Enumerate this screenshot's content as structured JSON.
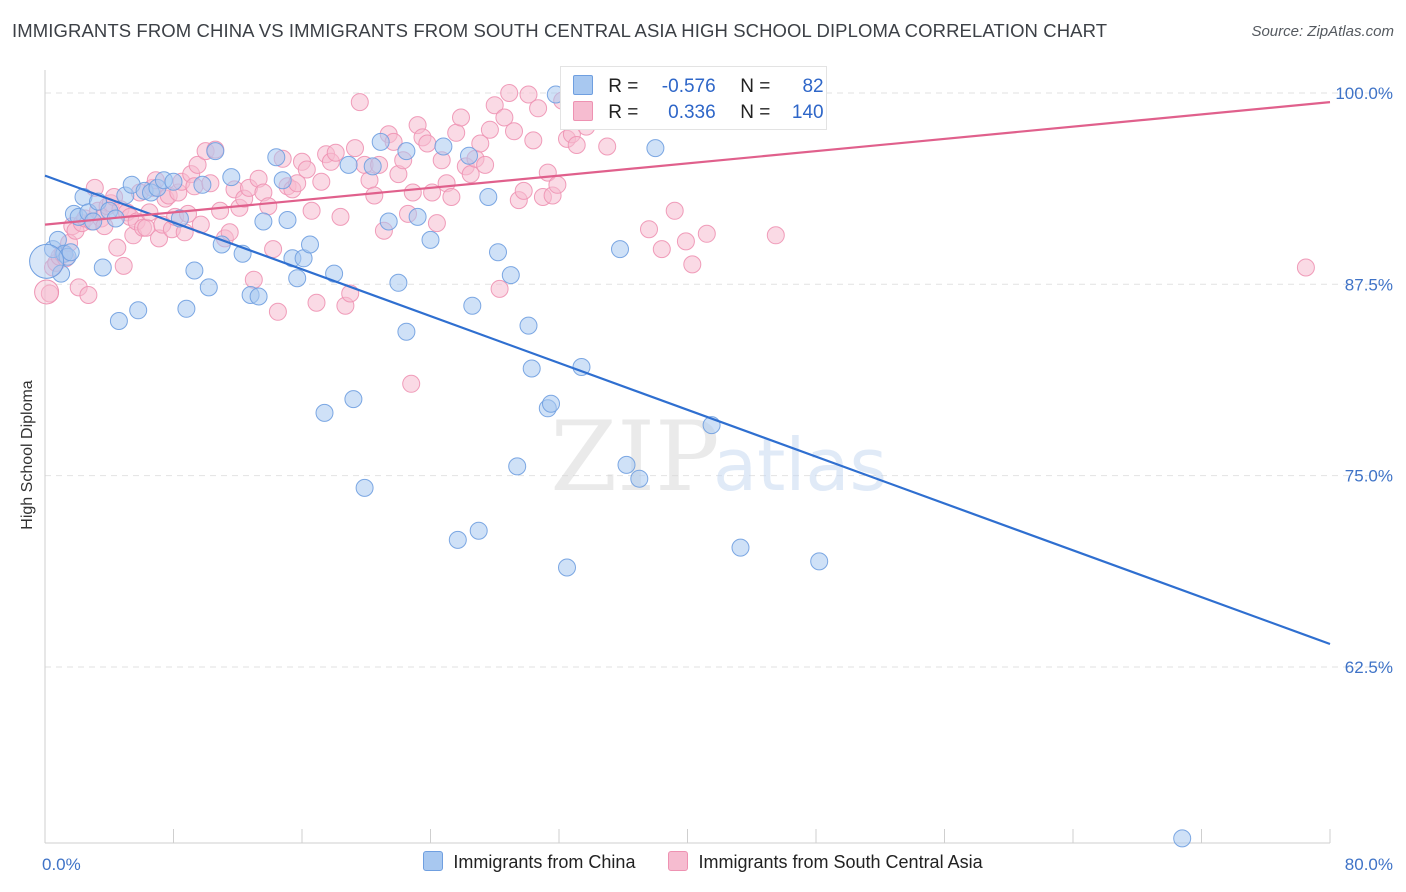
{
  "header": {
    "title": "IMMIGRANTS FROM CHINA VS IMMIGRANTS FROM SOUTH CENTRAL ASIA HIGH SCHOOL DIPLOMA CORRELATION CHART",
    "source": "Source: ZipAtlas.com"
  },
  "watermark": {
    "zip": "ZIP",
    "atlas": "atlas"
  },
  "colors": {
    "china_fill": "#a8c8f0",
    "china_stroke": "#6f9fe0",
    "china_line": "#2f6fd0",
    "sca_fill": "#f6bcd0",
    "sca_stroke": "#ee92b2",
    "sca_line": "#e0608c",
    "tick_label": "#3f73c7",
    "grid": "#e2e2e2"
  },
  "legend": {
    "china": {
      "r_label": "R =",
      "r_value": "-0.576",
      "n_label": "N =",
      "n_value": "82"
    },
    "sca": {
      "r_label": "R =",
      "r_value": "0.336",
      "n_label": "N =",
      "n_value": "140"
    }
  },
  "bottom_legend": {
    "china": "Immigrants from China",
    "sca": "Immigrants from South Central Asia"
  },
  "chart_data": {
    "type": "scatter",
    "title": "IMMIGRANTS FROM CHINA VS IMMIGRANTS FROM SOUTH CENTRAL ASIA HIGH SCHOOL DIPLOMA CORRELATION CHART",
    "xlabel": "",
    "ylabel": "High School Diploma",
    "xlim": [
      0,
      80
    ],
    "ylim": [
      51,
      101.5
    ],
    "x_tick_labels": [
      "0.0%",
      "80.0%"
    ],
    "y_ticks": [
      62.5,
      75.0,
      87.5,
      100.0
    ],
    "y_tick_labels": [
      "62.5%",
      "75.0%",
      "87.5%",
      "100.0%"
    ],
    "grid": true,
    "legend_position": "top-center",
    "series": [
      {
        "name": "Immigrants from China",
        "R": -0.576,
        "N": 82,
        "trendline": {
          "x": [
            0,
            80
          ],
          "y": [
            94.6,
            64.0
          ]
        },
        "points": [
          [
            0.5,
            89.8
          ],
          [
            0.8,
            90.4
          ],
          [
            1.0,
            88.2
          ],
          [
            1.2,
            89.5
          ],
          [
            1.4,
            89.3
          ],
          [
            1.6,
            89.6
          ],
          [
            1.8,
            92.1
          ],
          [
            2.1,
            91.9
          ],
          [
            2.4,
            93.2
          ],
          [
            2.7,
            92.2
          ],
          [
            3.0,
            91.6
          ],
          [
            3.3,
            92.9
          ],
          [
            3.6,
            88.6
          ],
          [
            4.0,
            92.3
          ],
          [
            4.4,
            91.8
          ],
          [
            4.6,
            85.1
          ],
          [
            5.0,
            93.3
          ],
          [
            5.4,
            94.0
          ],
          [
            5.8,
            85.8
          ],
          [
            6.2,
            93.6
          ],
          [
            6.6,
            93.5
          ],
          [
            7.0,
            93.8
          ],
          [
            7.4,
            94.3
          ],
          [
            8.0,
            94.2
          ],
          [
            8.4,
            91.8
          ],
          [
            8.8,
            85.9
          ],
          [
            9.3,
            88.4
          ],
          [
            9.8,
            94.0
          ],
          [
            10.2,
            87.3
          ],
          [
            10.6,
            96.2
          ],
          [
            11.0,
            90.1
          ],
          [
            11.6,
            94.5
          ],
          [
            12.3,
            89.5
          ],
          [
            12.8,
            86.8
          ],
          [
            13.3,
            86.7
          ],
          [
            13.6,
            91.6
          ],
          [
            14.4,
            95.8
          ],
          [
            14.8,
            94.3
          ],
          [
            15.1,
            91.7
          ],
          [
            15.4,
            89.2
          ],
          [
            15.7,
            87.9
          ],
          [
            16.1,
            89.2
          ],
          [
            16.5,
            90.1
          ],
          [
            17.4,
            79.1
          ],
          [
            18.0,
            88.2
          ],
          [
            18.9,
            95.3
          ],
          [
            19.2,
            80.0
          ],
          [
            19.9,
            74.2
          ],
          [
            20.4,
            95.2
          ],
          [
            20.9,
            96.8
          ],
          [
            21.4,
            91.6
          ],
          [
            22.0,
            87.6
          ],
          [
            22.5,
            84.4
          ],
          [
            22.5,
            96.2
          ],
          [
            23.2,
            91.9
          ],
          [
            24.0,
            90.4
          ],
          [
            24.8,
            96.5
          ],
          [
            25.7,
            70.8
          ],
          [
            26.4,
            95.9
          ],
          [
            26.6,
            86.1
          ],
          [
            27.0,
            71.4
          ],
          [
            27.6,
            93.2
          ],
          [
            28.2,
            89.6
          ],
          [
            29.0,
            88.1
          ],
          [
            29.4,
            75.6
          ],
          [
            30.1,
            84.8
          ],
          [
            30.3,
            82.0
          ],
          [
            31.3,
            79.4
          ],
          [
            31.5,
            79.7
          ],
          [
            31.8,
            99.9
          ],
          [
            32.5,
            69.0
          ],
          [
            33.0,
            99.4
          ],
          [
            33.4,
            82.1
          ],
          [
            33.6,
            99.6
          ],
          [
            33.7,
            100.0
          ],
          [
            35.8,
            89.8
          ],
          [
            36.2,
            75.7
          ],
          [
            37.0,
            74.8
          ],
          [
            38.0,
            96.4
          ],
          [
            41.5,
            78.3
          ],
          [
            43.3,
            70.3
          ],
          [
            48.2,
            69.4
          ],
          [
            70.8,
            51.3
          ]
        ]
      },
      {
        "name": "Immigrants from South Central Asia",
        "R": 0.336,
        "N": 140,
        "trendline": {
          "x": [
            0,
            80
          ],
          "y": [
            91.4,
            99.4
          ]
        },
        "points": [
          [
            0.3,
            86.9
          ],
          [
            0.5,
            88.6
          ],
          [
            0.7,
            88.9
          ],
          [
            0.9,
            89.3
          ],
          [
            1.1,
            89.5
          ],
          [
            1.3,
            89.2
          ],
          [
            1.5,
            90.2
          ],
          [
            1.7,
            91.3
          ],
          [
            1.9,
            91.0
          ],
          [
            2.1,
            87.3
          ],
          [
            2.3,
            91.5
          ],
          [
            2.5,
            91.8
          ],
          [
            2.7,
            86.8
          ],
          [
            2.9,
            91.6
          ],
          [
            3.1,
            93.8
          ],
          [
            3.3,
            92.3
          ],
          [
            3.5,
            91.8
          ],
          [
            3.7,
            91.3
          ],
          [
            3.9,
            92.6
          ],
          [
            4.1,
            92.8
          ],
          [
            4.3,
            93.2
          ],
          [
            4.5,
            89.9
          ],
          [
            4.7,
            92.4
          ],
          [
            4.9,
            88.7
          ],
          [
            5.1,
            92.2
          ],
          [
            5.3,
            91.9
          ],
          [
            5.5,
            90.7
          ],
          [
            5.7,
            91.6
          ],
          [
            5.9,
            93.5
          ],
          [
            6.1,
            91.2
          ],
          [
            6.3,
            91.2
          ],
          [
            6.5,
            92.2
          ],
          [
            6.7,
            93.8
          ],
          [
            6.9,
            94.3
          ],
          [
            7.1,
            90.5
          ],
          [
            7.3,
            91.4
          ],
          [
            7.5,
            93.1
          ],
          [
            7.7,
            93.3
          ],
          [
            7.9,
            91.1
          ],
          [
            8.1,
            91.9
          ],
          [
            8.3,
            93.5
          ],
          [
            8.5,
            94.2
          ],
          [
            8.7,
            90.9
          ],
          [
            8.9,
            92.1
          ],
          [
            9.1,
            94.7
          ],
          [
            9.3,
            93.9
          ],
          [
            9.5,
            95.3
          ],
          [
            9.7,
            91.4
          ],
          [
            10.0,
            96.2
          ],
          [
            10.3,
            94.1
          ],
          [
            10.6,
            96.3
          ],
          [
            10.9,
            92.3
          ],
          [
            11.2,
            90.5
          ],
          [
            11.5,
            90.9
          ],
          [
            11.8,
            93.7
          ],
          [
            12.1,
            92.5
          ],
          [
            12.4,
            93.1
          ],
          [
            12.7,
            93.8
          ],
          [
            13.0,
            87.8
          ],
          [
            13.3,
            94.4
          ],
          [
            13.6,
            93.5
          ],
          [
            13.9,
            92.6
          ],
          [
            14.2,
            89.8
          ],
          [
            14.5,
            85.7
          ],
          [
            14.8,
            95.7
          ],
          [
            15.1,
            93.9
          ],
          [
            15.4,
            93.7
          ],
          [
            15.7,
            94.1
          ],
          [
            16.0,
            95.5
          ],
          [
            16.3,
            95.0
          ],
          [
            16.6,
            92.3
          ],
          [
            16.9,
            86.3
          ],
          [
            17.2,
            94.2
          ],
          [
            17.5,
            96.0
          ],
          [
            17.8,
            95.5
          ],
          [
            18.1,
            96.1
          ],
          [
            18.4,
            91.9
          ],
          [
            18.7,
            86.1
          ],
          [
            19.0,
            86.9
          ],
          [
            19.3,
            96.4
          ],
          [
            19.6,
            99.4
          ],
          [
            19.9,
            95.3
          ],
          [
            20.2,
            94.3
          ],
          [
            20.5,
            93.3
          ],
          [
            20.8,
            95.3
          ],
          [
            21.1,
            91.0
          ],
          [
            21.4,
            97.3
          ],
          [
            21.7,
            96.8
          ],
          [
            22.0,
            94.7
          ],
          [
            22.3,
            95.6
          ],
          [
            22.6,
            92.1
          ],
          [
            22.9,
            93.5
          ],
          [
            23.2,
            97.9
          ],
          [
            23.5,
            97.1
          ],
          [
            23.8,
            96.7
          ],
          [
            24.1,
            93.5
          ],
          [
            24.4,
            91.5
          ],
          [
            24.7,
            95.6
          ],
          [
            25.0,
            94.1
          ],
          [
            25.3,
            93.2
          ],
          [
            25.6,
            97.4
          ],
          [
            25.9,
            98.4
          ],
          [
            26.2,
            95.2
          ],
          [
            26.5,
            94.7
          ],
          [
            26.8,
            95.7
          ],
          [
            27.1,
            96.7
          ],
          [
            27.4,
            95.3
          ],
          [
            27.7,
            97.6
          ],
          [
            28.0,
            99.2
          ],
          [
            28.3,
            87.2
          ],
          [
            28.6,
            98.4
          ],
          [
            28.9,
            100.0
          ],
          [
            29.2,
            97.5
          ],
          [
            29.5,
            93.0
          ],
          [
            29.8,
            93.6
          ],
          [
            30.1,
            99.9
          ],
          [
            30.4,
            96.9
          ],
          [
            30.7,
            99.0
          ],
          [
            31.0,
            93.2
          ],
          [
            31.3,
            94.8
          ],
          [
            31.6,
            93.3
          ],
          [
            31.9,
            94.0
          ],
          [
            32.2,
            99.5
          ],
          [
            32.5,
            97.0
          ],
          [
            32.8,
            97.3
          ],
          [
            33.1,
            96.6
          ],
          [
            33.4,
            98.4
          ],
          [
            33.7,
            97.8
          ],
          [
            34.0,
            99.8
          ],
          [
            34.3,
            98.9
          ],
          [
            35.0,
            96.5
          ],
          [
            37.6,
            91.1
          ],
          [
            38.4,
            89.8
          ],
          [
            39.2,
            92.3
          ],
          [
            39.9,
            90.3
          ],
          [
            40.3,
            88.8
          ],
          [
            41.2,
            90.8
          ],
          [
            45.5,
            90.7
          ],
          [
            78.5,
            88.6
          ],
          [
            22.8,
            81.0
          ]
        ]
      }
    ]
  }
}
